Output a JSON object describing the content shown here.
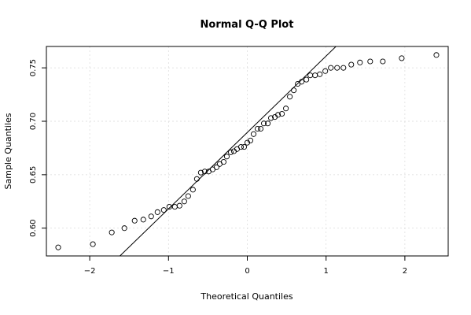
{
  "chart_data": {
    "type": "scatter",
    "title": "Normal Q-Q Plot",
    "xlabel": "Theoretical Quantiles",
    "ylabel": "Sample Quantiles",
    "xlim": [
      -2.55,
      2.55
    ],
    "ylim": [
      0.574,
      0.77
    ],
    "x_ticks": [
      -2,
      -1,
      0,
      1,
      2
    ],
    "x_tick_labels": [
      "−2",
      "−1",
      "0",
      "1",
      "2"
    ],
    "y_ticks": [
      0.6,
      0.65,
      0.7,
      0.75
    ],
    "y_tick_labels": [
      "0.60",
      "0.65",
      "0.70",
      "0.75"
    ],
    "grid": true,
    "reference_line": {
      "x1": -2.0,
      "y1": 0.5466,
      "x2": 2.0,
      "y2": 0.8325
    },
    "points": [
      {
        "x": -2.4,
        "y": 0.582
      },
      {
        "x": -1.96,
        "y": 0.585
      },
      {
        "x": -1.72,
        "y": 0.596
      },
      {
        "x": -1.56,
        "y": 0.6
      },
      {
        "x": -1.43,
        "y": 0.607
      },
      {
        "x": -1.32,
        "y": 0.608
      },
      {
        "x": -1.22,
        "y": 0.611
      },
      {
        "x": -1.14,
        "y": 0.615
      },
      {
        "x": -1.06,
        "y": 0.617
      },
      {
        "x": -0.99,
        "y": 0.62
      },
      {
        "x": -0.92,
        "y": 0.62
      },
      {
        "x": -0.86,
        "y": 0.621
      },
      {
        "x": -0.8,
        "y": 0.625
      },
      {
        "x": -0.75,
        "y": 0.63
      },
      {
        "x": -0.69,
        "y": 0.636
      },
      {
        "x": -0.64,
        "y": 0.646
      },
      {
        "x": -0.59,
        "y": 0.652
      },
      {
        "x": -0.54,
        "y": 0.653
      },
      {
        "x": -0.49,
        "y": 0.653
      },
      {
        "x": -0.44,
        "y": 0.655
      },
      {
        "x": -0.39,
        "y": 0.657
      },
      {
        "x": -0.35,
        "y": 0.66
      },
      {
        "x": -0.3,
        "y": 0.662
      },
      {
        "x": -0.26,
        "y": 0.667
      },
      {
        "x": -0.21,
        "y": 0.671
      },
      {
        "x": -0.17,
        "y": 0.672
      },
      {
        "x": -0.13,
        "y": 0.674
      },
      {
        "x": -0.08,
        "y": 0.676
      },
      {
        "x": -0.04,
        "y": 0.676
      },
      {
        "x": 0.0,
        "y": 0.68
      },
      {
        "x": 0.04,
        "y": 0.682
      },
      {
        "x": 0.08,
        "y": 0.688
      },
      {
        "x": 0.13,
        "y": 0.693
      },
      {
        "x": 0.17,
        "y": 0.693
      },
      {
        "x": 0.21,
        "y": 0.698
      },
      {
        "x": 0.26,
        "y": 0.698
      },
      {
        "x": 0.3,
        "y": 0.703
      },
      {
        "x": 0.35,
        "y": 0.704
      },
      {
        "x": 0.39,
        "y": 0.706
      },
      {
        "x": 0.44,
        "y": 0.707
      },
      {
        "x": 0.49,
        "y": 0.712
      },
      {
        "x": 0.54,
        "y": 0.723
      },
      {
        "x": 0.59,
        "y": 0.729
      },
      {
        "x": 0.64,
        "y": 0.735
      },
      {
        "x": 0.69,
        "y": 0.737
      },
      {
        "x": 0.75,
        "y": 0.739
      },
      {
        "x": 0.8,
        "y": 0.743
      },
      {
        "x": 0.86,
        "y": 0.743
      },
      {
        "x": 0.92,
        "y": 0.744
      },
      {
        "x": 0.99,
        "y": 0.747
      },
      {
        "x": 1.06,
        "y": 0.75
      },
      {
        "x": 1.14,
        "y": 0.75
      },
      {
        "x": 1.22,
        "y": 0.75
      },
      {
        "x": 1.32,
        "y": 0.753
      },
      {
        "x": 1.43,
        "y": 0.755
      },
      {
        "x": 1.56,
        "y": 0.756
      },
      {
        "x": 1.72,
        "y": 0.756
      },
      {
        "x": 1.96,
        "y": 0.759
      },
      {
        "x": 2.4,
        "y": 0.762
      }
    ]
  }
}
